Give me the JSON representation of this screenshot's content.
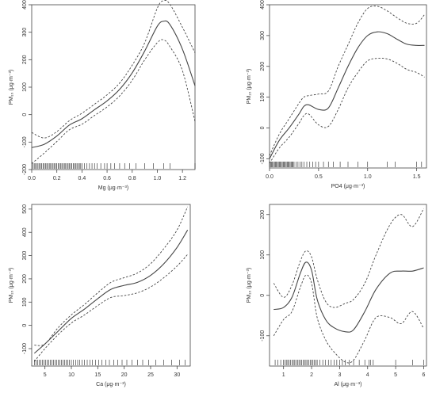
{
  "figure": {
    "line_color": "#444444",
    "text_color": "#333333",
    "background": "#ffffff"
  },
  "chart_data": [
    {
      "type": "line",
      "xlabel": "Mg (μg·m⁻³)",
      "ylabel": "PM₁₀ (μg·m⁻³)",
      "xlim": [
        0,
        1.3
      ],
      "ylim": [
        -200,
        400
      ],
      "x_ticks": [
        "0.0",
        "0.2",
        "0.4",
        "0.6",
        "0.8",
        "1.0",
        "1.2"
      ],
      "y_ticks": [
        "-200",
        "-100",
        "0",
        "100",
        "200",
        "300",
        "400"
      ],
      "x_tick_values": [
        0,
        0.2,
        0.4,
        0.6,
        0.8,
        1.0,
        1.2
      ],
      "y_tick_values": [
        -200,
        -100,
        0,
        100,
        200,
        300,
        400
      ],
      "x": [
        0.0,
        0.1,
        0.2,
        0.3,
        0.4,
        0.5,
        0.6,
        0.7,
        0.8,
        0.9,
        1.0,
        1.05,
        1.1,
        1.2,
        1.3
      ],
      "series": [
        {
          "style": "solid",
          "values": [
            -120,
            -108,
            -78,
            -38,
            -15,
            18,
            50,
            92,
            152,
            232,
            322,
            340,
            328,
            238,
            105
          ]
        },
        {
          "style": "dashed",
          "values": [
            -65,
            -85,
            -62,
            -22,
            5,
            38,
            72,
            115,
            180,
            262,
            388,
            415,
            402,
            318,
            225
          ]
        },
        {
          "style": "dashed",
          "values": [
            -178,
            -140,
            -98,
            -55,
            -35,
            -3,
            28,
            68,
            125,
            200,
            262,
            272,
            248,
            160,
            -25
          ]
        }
      ],
      "rug": [
        0.01,
        0.02,
        0.03,
        0.04,
        0.05,
        0.06,
        0.07,
        0.08,
        0.09,
        0.1,
        0.11,
        0.12,
        0.13,
        0.14,
        0.15,
        0.16,
        0.17,
        0.18,
        0.19,
        0.2,
        0.21,
        0.22,
        0.23,
        0.24,
        0.25,
        0.26,
        0.27,
        0.28,
        0.29,
        0.3,
        0.31,
        0.32,
        0.33,
        0.34,
        0.35,
        0.36,
        0.37,
        0.38,
        0.39,
        0.4,
        0.42,
        0.44,
        0.46,
        0.48,
        0.5,
        0.52,
        0.55,
        0.58,
        0.6,
        0.63,
        0.66,
        0.7,
        0.74,
        0.78,
        0.83,
        0.9,
        0.97,
        1.05,
        1.1,
        1.3
      ]
    },
    {
      "type": "line",
      "xlabel": "PO4 (μg·m⁻³)",
      "ylabel": "PM₁₀ (μg·m⁻³)",
      "xlim": [
        0,
        1.6
      ],
      "ylim": [
        -130,
        400
      ],
      "x_ticks": [
        "0.0",
        "0.5",
        "1.0",
        "1.5"
      ],
      "y_ticks": [
        "-100",
        "0",
        "100",
        "200",
        "300",
        "400"
      ],
      "x_tick_values": [
        0,
        0.5,
        1.0,
        1.5
      ],
      "y_tick_values": [
        -100,
        0,
        100,
        200,
        300,
        400
      ],
      "x": [
        0.0,
        0.1,
        0.2,
        0.3,
        0.35,
        0.4,
        0.5,
        0.6,
        0.7,
        0.8,
        0.9,
        1.0,
        1.1,
        1.2,
        1.3,
        1.4,
        1.5,
        1.58
      ],
      "series": [
        {
          "style": "solid",
          "values": [
            -100,
            -40,
            0,
            45,
            70,
            75,
            60,
            65,
            130,
            200,
            260,
            300,
            312,
            306,
            288,
            272,
            268,
            268
          ]
        },
        {
          "style": "dashed",
          "values": [
            -90,
            -20,
            30,
            80,
            100,
            105,
            110,
            120,
            200,
            270,
            340,
            388,
            395,
            380,
            358,
            340,
            340,
            368
          ]
        },
        {
          "style": "dashed",
          "values": [
            -115,
            -65,
            -30,
            15,
            40,
            45,
            10,
            5,
            60,
            130,
            180,
            218,
            226,
            224,
            210,
            190,
            180,
            165
          ]
        }
      ],
      "rug": [
        0.0,
        0.01,
        0.02,
        0.03,
        0.04,
        0.05,
        0.06,
        0.07,
        0.08,
        0.09,
        0.1,
        0.11,
        0.12,
        0.13,
        0.14,
        0.15,
        0.16,
        0.17,
        0.18,
        0.19,
        0.2,
        0.21,
        0.22,
        0.23,
        0.24,
        0.25,
        0.27,
        0.29,
        0.31,
        0.33,
        0.35,
        0.38,
        0.41,
        0.44,
        0.47,
        0.5,
        0.55,
        0.6,
        0.65,
        0.72,
        0.8,
        0.9,
        1.0,
        1.2,
        1.28,
        1.5,
        1.55
      ]
    },
    {
      "type": "line",
      "xlabel": "Ca (μg·m⁻³)",
      "ylabel": "PM₁₀ (μg·m⁻³)",
      "xlim": [
        2.5,
        32.5
      ],
      "ylim": [
        -175,
        520
      ],
      "x_ticks": [
        "5",
        "10",
        "15",
        "20",
        "25",
        "30"
      ],
      "y_ticks": [
        "-100",
        "0",
        "100",
        "200",
        "300",
        "400",
        "500"
      ],
      "x_tick_values": [
        5,
        10,
        15,
        20,
        25,
        30
      ],
      "y_tick_values": [
        -100,
        0,
        100,
        200,
        300,
        400,
        500
      ],
      "x": [
        3,
        5,
        7.5,
        10,
        12.5,
        15,
        17.5,
        20,
        22.5,
        25,
        27.5,
        30,
        32
      ],
      "series": [
        {
          "style": "solid",
          "values": [
            -120,
            -80,
            -25,
            30,
            70,
            115,
            155,
            172,
            185,
            215,
            265,
            335,
            410
          ]
        },
        {
          "style": "dashed",
          "values": [
            -85,
            -80,
            -10,
            45,
            90,
            140,
            185,
            205,
            225,
            265,
            330,
            410,
            510
          ]
        },
        {
          "style": "dashed",
          "values": [
            -155,
            -100,
            -40,
            10,
            45,
            85,
            120,
            128,
            140,
            165,
            205,
            255,
            305
          ]
        }
      ],
      "rug": [
        3,
        3.3,
        3.6,
        3.9,
        4.2,
        4.5,
        4.8,
        5.1,
        5.4,
        5.7,
        6,
        6.3,
        6.6,
        6.9,
        7.2,
        7.5,
        7.8,
        8.1,
        8.4,
        8.7,
        9,
        9.3,
        9.6,
        10,
        10.4,
        10.8,
        11.2,
        11.6,
        12,
        12.5,
        13,
        13.5,
        14,
        14.6,
        15.2,
        15.8,
        16.5,
        17.2,
        18,
        18.8,
        19.6,
        20.5,
        21.5,
        22.5,
        23.5,
        24.6,
        26,
        27.5,
        29,
        30.5,
        31.5
      ]
    },
    {
      "type": "line",
      "xlabel": "Al (μg·m⁻³)",
      "ylabel": "PM₁₀ (μg·m⁻³)",
      "xlim": [
        0.5,
        6.1
      ],
      "ylim": [
        -175,
        225
      ],
      "x_ticks": [
        "1",
        "2",
        "3",
        "4",
        "5",
        "6"
      ],
      "y_ticks": [
        "-100",
        "0",
        "100",
        "200"
      ],
      "x_tick_values": [
        1,
        2,
        3,
        4,
        5,
        6
      ],
      "y_tick_values": [
        -100,
        0,
        100,
        200
      ],
      "x": [
        0.65,
        1.0,
        1.3,
        1.6,
        1.8,
        2.0,
        2.2,
        2.5,
        2.8,
        3.2,
        3.5,
        3.9,
        4.3,
        4.8,
        5.2,
        5.6,
        6.0
      ],
      "series": [
        {
          "style": "solid",
          "values": [
            -35,
            -30,
            -5,
            55,
            82,
            62,
            -10,
            -60,
            -80,
            -90,
            -85,
            -40,
            15,
            55,
            60,
            60,
            68
          ]
        },
        {
          "style": "dashed",
          "values": [
            30,
            -5,
            25,
            85,
            110,
            95,
            40,
            -15,
            -30,
            -20,
            -10,
            30,
            100,
            175,
            200,
            170,
            215
          ]
        },
        {
          "style": "dashed",
          "values": [
            -100,
            -60,
            -40,
            20,
            50,
            30,
            -55,
            -110,
            -140,
            -165,
            -160,
            -110,
            -55,
            -55,
            -70,
            -40,
            -82
          ]
        }
      ],
      "rug": [
        0.7,
        0.8,
        0.9,
        1.0,
        1.05,
        1.1,
        1.15,
        1.2,
        1.25,
        1.3,
        1.35,
        1.4,
        1.45,
        1.5,
        1.55,
        1.6,
        1.65,
        1.7,
        1.75,
        1.8,
        1.85,
        1.9,
        1.95,
        2.0,
        2.05,
        2.1,
        2.15,
        2.2,
        2.3,
        2.4,
        2.5,
        2.6,
        2.7,
        2.8,
        2.9,
        3.0,
        3.1,
        3.2,
        3.35,
        3.5,
        3.7,
        3.9,
        4.05,
        4.1,
        4.2,
        5.0,
        5.6,
        6.0
      ]
    }
  ]
}
